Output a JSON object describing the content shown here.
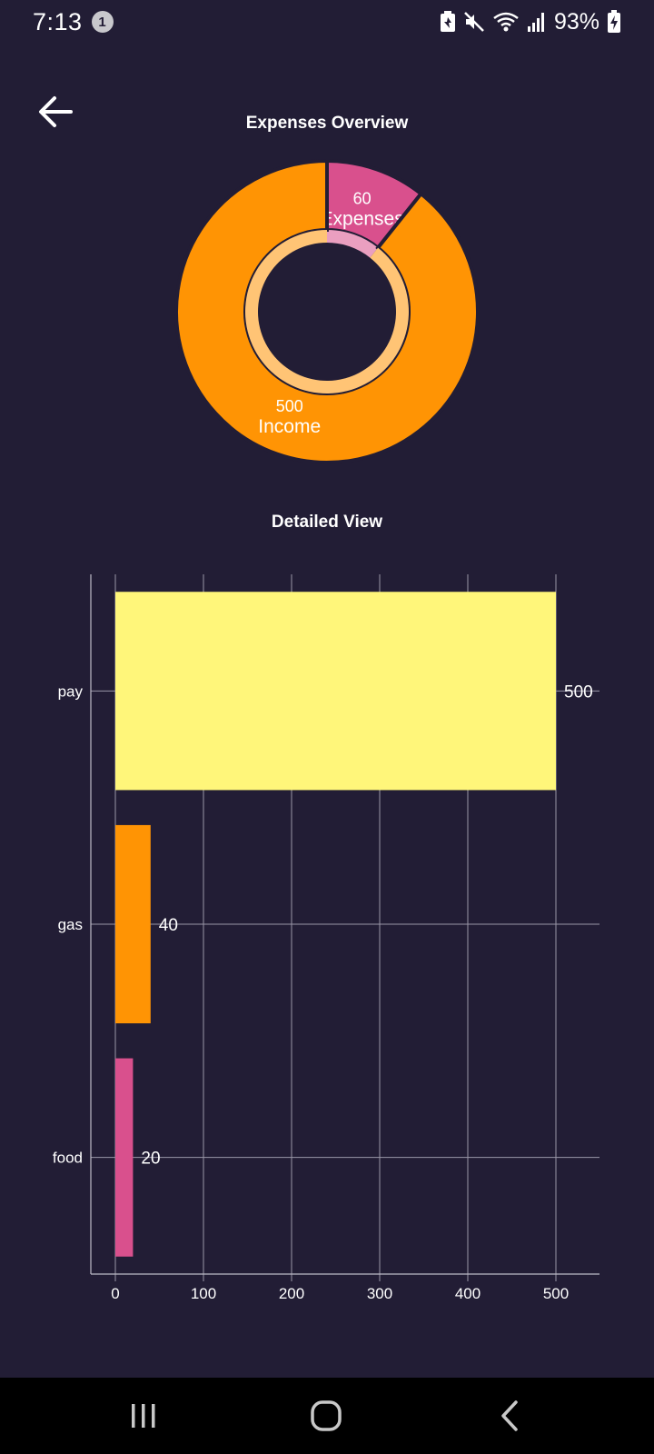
{
  "status_bar": {
    "time": "7:13",
    "notification_count": "1",
    "battery": "93%",
    "icons": [
      "battery-saver-icon",
      "mute-icon",
      "wifi-icon",
      "signal-icon",
      "battery-charging-icon"
    ]
  },
  "header": {
    "back_icon": "arrow-left-icon"
  },
  "overview": {
    "title": "Expenses Overview"
  },
  "detailed": {
    "title": "Detailed View"
  },
  "nav_bar": {
    "icons": [
      "recent-apps-icon",
      "home-icon",
      "back-icon"
    ]
  },
  "chart_data": [
    {
      "type": "pie",
      "variant": "donut",
      "title": "Expenses Overview",
      "slices": [
        {
          "label": "Expenses",
          "value": 60,
          "color": "#d9508d"
        },
        {
          "label": "Income",
          "value": 500,
          "color": "#ff9404"
        }
      ]
    },
    {
      "type": "bar",
      "orientation": "horizontal",
      "title": "Detailed View",
      "categories": [
        "pay",
        "gas",
        "food"
      ],
      "values": [
        500,
        40,
        20
      ],
      "colors": [
        "#fff67a",
        "#ff9404",
        "#d9508d"
      ],
      "xlim": [
        0,
        500
      ],
      "xticks": [
        0,
        100,
        200,
        300,
        400,
        500
      ],
      "grid": true
    }
  ]
}
